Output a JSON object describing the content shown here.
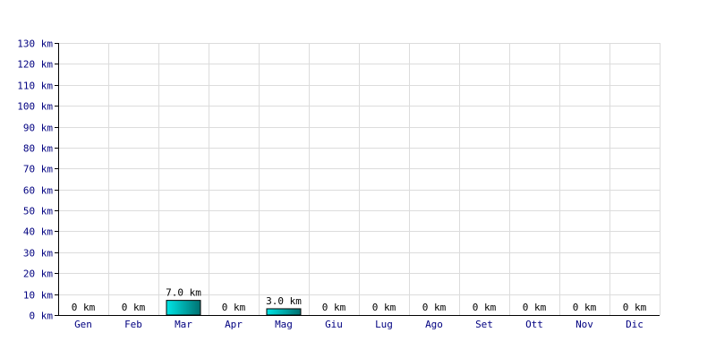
{
  "chart_data": {
    "type": "bar",
    "title": "",
    "xlabel": "",
    "ylabel": "",
    "unit": "km",
    "categories": [
      "Gen",
      "Feb",
      "Mar",
      "Apr",
      "Mag",
      "Giu",
      "Lug",
      "Ago",
      "Set",
      "Ott",
      "Nov",
      "Dic"
    ],
    "values": [
      0,
      0,
      7.0,
      0,
      3.0,
      0,
      0,
      0,
      0,
      0,
      0,
      0
    ],
    "value_labels": [
      "0 km",
      "0 km",
      "7.0 km",
      "0 km",
      "3.0 km",
      "0 km",
      "0 km",
      "0 km",
      "0 km",
      "0 km",
      "0 km",
      "0 km"
    ],
    "ylim": [
      0,
      130
    ],
    "y_ticks": [
      0,
      10,
      20,
      30,
      40,
      50,
      60,
      70,
      80,
      90,
      100,
      110,
      120,
      130
    ],
    "y_tick_labels": [
      "0 km",
      "10 km",
      "20 km",
      "30 km",
      "40 km",
      "50 km",
      "60 km",
      "70 km",
      "80 km",
      "90 km",
      "100 km",
      "110 km",
      "120 km",
      "130 km"
    ],
    "grid": true,
    "legend": "none",
    "colors": {
      "bar_light": "#00e5e5",
      "bar_dark": "#007070",
      "bar_stroke": "#000000",
      "grid": "#dcdcdc",
      "axis": "#000000",
      "tick_text": "#000080"
    }
  }
}
